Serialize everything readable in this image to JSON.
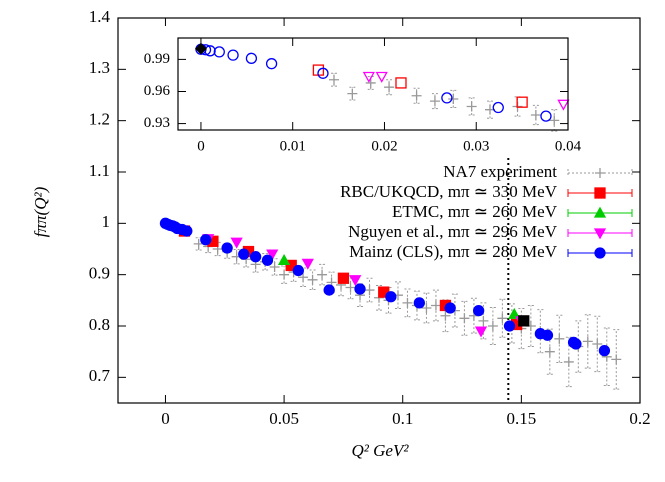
{
  "chart_data": [
    {
      "type": "scatter",
      "x_label": "Q² GeV²",
      "y_label": "fππ(Q²)",
      "xlim": [
        -0.02,
        0.2
      ],
      "ylim": [
        0.65,
        1.4
      ],
      "xticks": [
        0,
        0.05,
        0.1,
        0.15,
        0.2
      ],
      "yticks": [
        0.7,
        0.8,
        0.9,
        1,
        1.1,
        1.2,
        1.3,
        1.4
      ],
      "legend": "top-right",
      "vline": 0.1445,
      "series": [
        {
          "name": "NA7 experiment",
          "color": "#999999",
          "marker": "plus",
          "filled": false,
          "x": [
            0.014,
            0.018,
            0.022,
            0.026,
            0.03,
            0.034,
            0.038,
            0.042,
            0.046,
            0.05,
            0.054,
            0.058,
            0.062,
            0.066,
            0.07,
            0.074,
            0.078,
            0.082,
            0.086,
            0.09,
            0.094,
            0.098,
            0.102,
            0.106,
            0.11,
            0.114,
            0.118,
            0.122,
            0.126,
            0.13,
            0.134,
            0.138,
            0.142,
            0.146,
            0.15,
            0.154,
            0.158,
            0.162,
            0.166,
            0.17,
            0.174,
            0.178,
            0.182,
            0.186,
            0.19
          ],
          "values": [
            0.96,
            0.955,
            0.95,
            0.945,
            0.935,
            0.93,
            0.92,
            0.925,
            0.915,
            0.9,
            0.905,
            0.895,
            0.89,
            0.9,
            0.885,
            0.88,
            0.875,
            0.86,
            0.87,
            0.855,
            0.85,
            0.86,
            0.845,
            0.84,
            0.835,
            0.84,
            0.82,
            0.83,
            0.815,
            0.82,
            0.81,
            0.8,
            0.815,
            0.805,
            0.795,
            0.8,
            0.79,
            0.75,
            0.775,
            0.73,
            0.76,
            0.77,
            0.765,
            0.74,
            0.735
          ],
          "yerr": [
            0.012,
            0.012,
            0.013,
            0.013,
            0.014,
            0.015,
            0.015,
            0.016,
            0.016,
            0.017,
            0.018,
            0.018,
            0.019,
            0.02,
            0.02,
            0.021,
            0.022,
            0.022,
            0.023,
            0.024,
            0.025,
            0.026,
            0.027,
            0.028,
            0.029,
            0.03,
            0.031,
            0.032,
            0.033,
            0.034,
            0.035,
            0.036,
            0.037,
            0.038,
            0.039,
            0.04,
            0.042,
            0.044,
            0.046,
            0.048,
            0.05,
            0.052,
            0.054,
            0.056,
            0.058
          ]
        },
        {
          "name": "RBC/UKQCD, mπ ≃ 330 MeV",
          "color": "#ff0000",
          "marker": "square",
          "filled": true,
          "x": [
            0.008,
            0.02,
            0.035,
            0.053,
            0.075,
            0.092,
            0.118,
            0.148
          ],
          "values": [
            0.985,
            0.965,
            0.945,
            0.918,
            0.893,
            0.866,
            0.84,
            0.803
          ]
        },
        {
          "name": "ETMC, mπ ≃ 260 MeV",
          "color": "#00cc00",
          "marker": "triangle",
          "filled": true,
          "x": [
            0.05,
            0.147
          ],
          "values": [
            0.928,
            0.823
          ]
        },
        {
          "name": "Nguyen et al., mπ ≃ 296 MeV",
          "color": "#ff00ff",
          "marker": "triangle-down",
          "filled": true,
          "x": [
            0.018,
            0.03,
            0.045,
            0.06,
            0.08,
            0.133,
            0.15
          ],
          "values": [
            0.97,
            0.963,
            0.94,
            0.922,
            0.89,
            0.79,
            0.81
          ]
        },
        {
          "name": "Mainz (CLS), mπ ≃ 280 MeV",
          "color": "#0000ff",
          "marker": "circle",
          "filled": true,
          "x": [
            0,
            0.001,
            0.002,
            0.003,
            0.004,
            0.005,
            0.007,
            0.009,
            0.017,
            0.026,
            0.033,
            0.038,
            0.043,
            0.056,
            0.069,
            0.082,
            0.095,
            0.107,
            0.12,
            0.132,
            0.145,
            0.158,
            0.161,
            0.172,
            0.173,
            0.185
          ],
          "values": [
            1,
            0.998,
            0.996,
            0.995,
            0.993,
            0.99,
            0.988,
            0.985,
            0.968,
            0.952,
            0.94,
            0.935,
            0.928,
            0.908,
            0.87,
            0.872,
            0.857,
            0.845,
            0.835,
            0.83,
            0.8,
            0.785,
            0.782,
            0.768,
            0.765,
            0.752
          ]
        },
        {
          "color": "#000000",
          "marker": "square",
          "filled": true,
          "x": [
            0.151
          ],
          "values": [
            0.81
          ]
        }
      ]
    },
    {
      "type": "scatter",
      "xlim": [
        -0.0025,
        0.04
      ],
      "ylim": [
        0.924,
        1.01
      ],
      "xticks": [
        0,
        0.01,
        0.02,
        0.03,
        0.04
      ],
      "yticks": [
        0.93,
        0.96,
        0.99
      ],
      "series": [
        {
          "color": "#999999",
          "marker": "plus",
          "filled": false,
          "x": [
            0.0145,
            0.0165,
            0.0185,
            0.0205,
            0.0235,
            0.0255,
            0.0275,
            0.0295,
            0.0315,
            0.0345,
            0.0365,
            0.0385
          ],
          "values": [
            0.971,
            0.958,
            0.968,
            0.964,
            0.956,
            0.951,
            0.953,
            0.946,
            0.943,
            0.946,
            0.938,
            0.933
          ],
          "yerr": [
            0.006,
            0.006,
            0.006,
            0.007,
            0.007,
            0.007,
            0.008,
            0.008,
            0.008,
            0.009,
            0.009,
            0.01
          ]
        },
        {
          "color": "#ff0000",
          "marker": "square",
          "filled": false,
          "x": [
            0.0128,
            0.0218,
            0.035
          ],
          "values": [
            0.98,
            0.968,
            0.95
          ]
        },
        {
          "color": "#ff00ff",
          "marker": "triangle-down",
          "filled": false,
          "x": [
            0.0183,
            0.0197,
            0.0395
          ],
          "values": [
            0.974,
            0.974,
            0.948
          ]
        },
        {
          "color": "#0000ff",
          "marker": "circle",
          "filled": false,
          "x": [
            0,
            0.0005,
            0.001,
            0.002,
            0.0035,
            0.0055,
            0.0077,
            0.0133,
            0.0268,
            0.0324,
            0.0376
          ],
          "values": [
            0.9995,
            0.999,
            0.998,
            0.997,
            0.994,
            0.991,
            0.986,
            0.977,
            0.954,
            0.945,
            0.937
          ]
        },
        {
          "color": "#000000",
          "marker": "diamond",
          "filled": true,
          "x": [
            0
          ],
          "values": [
            1.0
          ]
        }
      ]
    }
  ]
}
